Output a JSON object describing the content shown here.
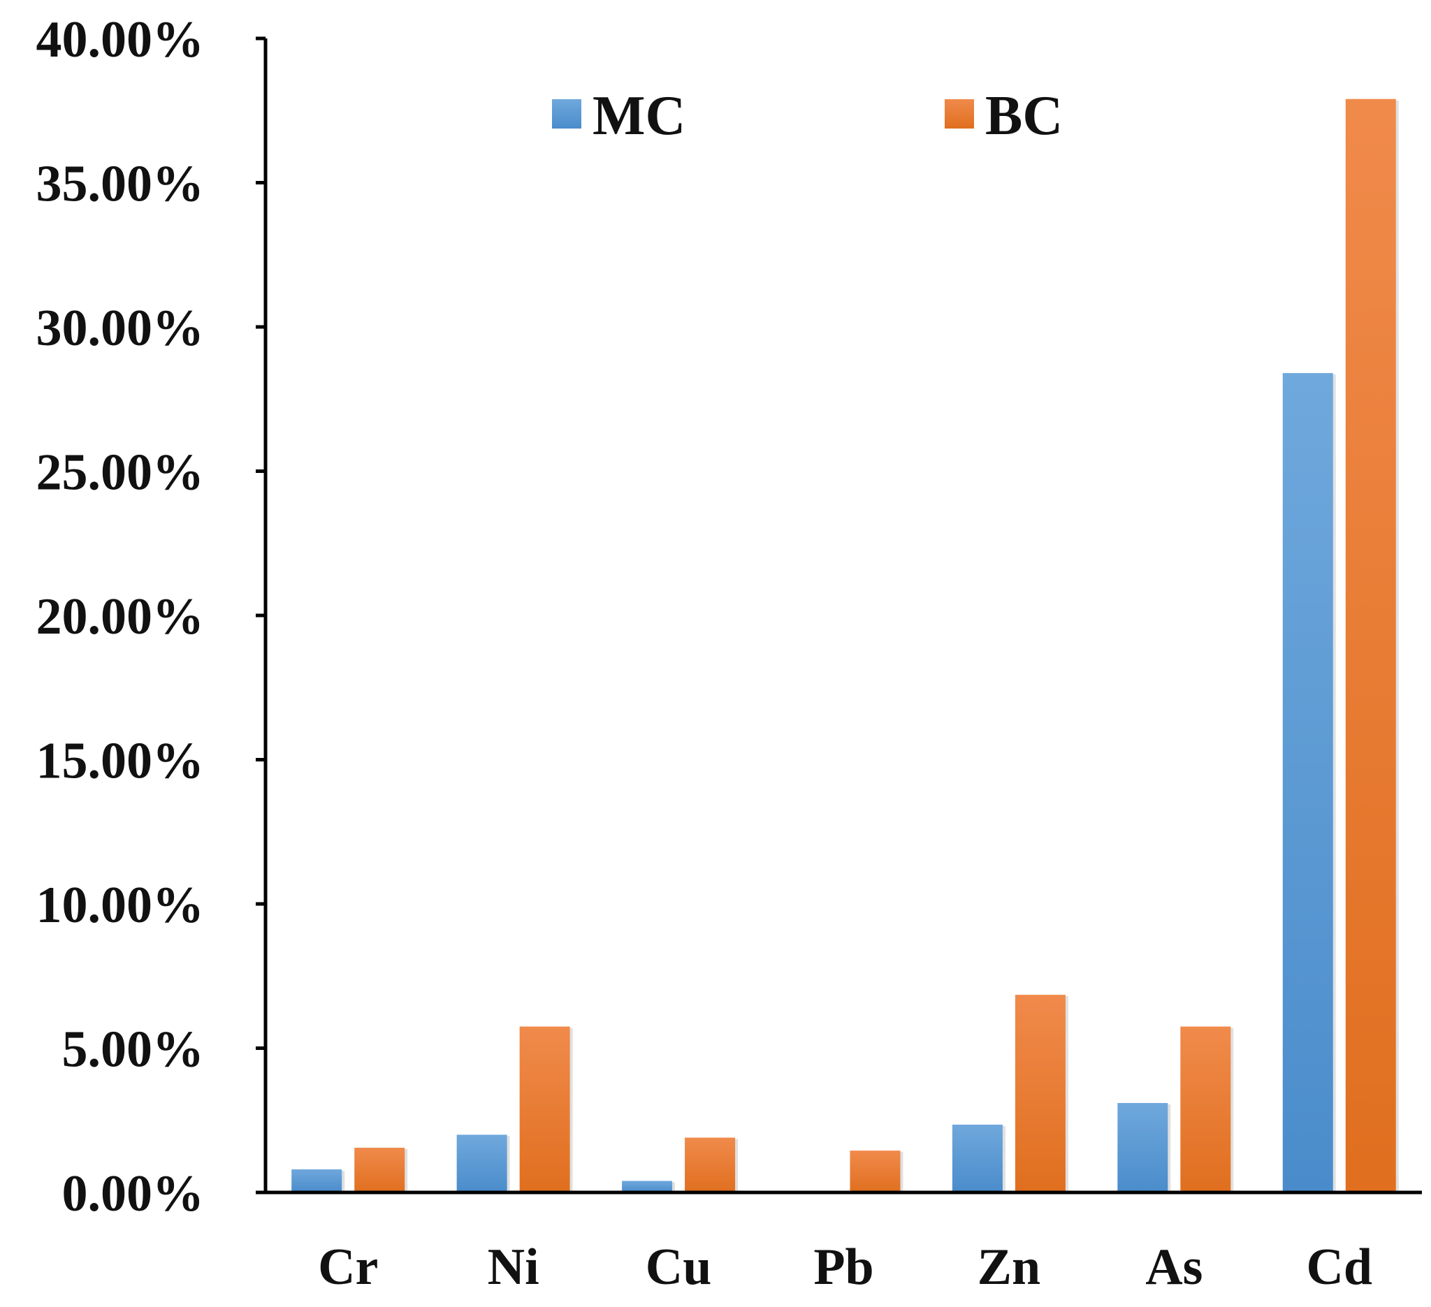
{
  "chart_data": {
    "type": "bar",
    "title": "",
    "xlabel": "",
    "ylabel": "",
    "categories": [
      "Cr",
      "Ni",
      "Cu",
      "Pb",
      "Zn",
      "As",
      "Cd"
    ],
    "series": [
      {
        "name": "MC",
        "values": [
          0.8,
          2.0,
          0.4,
          0.0,
          2.35,
          3.1,
          28.4
        ],
        "color": "#5b9bd5"
      },
      {
        "name": "BC",
        "values": [
          1.55,
          5.75,
          1.9,
          1.45,
          6.85,
          5.75,
          37.9
        ],
        "color": "#ed7d31"
      }
    ],
    "ylim": [
      0,
      40
    ],
    "yticks": [
      0,
      5,
      10,
      15,
      20,
      25,
      30,
      35,
      40
    ],
    "ytick_labels": [
      "0.00%",
      "5.00%",
      "10.00%",
      "15.00%",
      "20.00%",
      "25.00%",
      "30.00%",
      "35.00%",
      "40.00%"
    ],
    "grid": false,
    "legend_position": "top-center"
  }
}
